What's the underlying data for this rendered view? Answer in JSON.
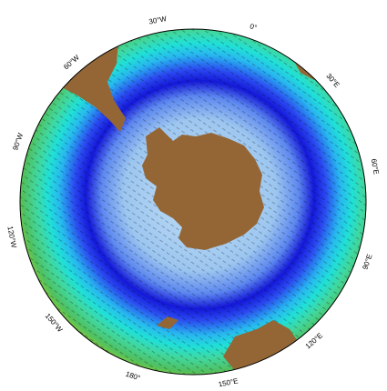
{
  "map": {
    "longitude_labels": [
      "30°W",
      "0°",
      "30°E",
      "60°E",
      "90°E",
      "120°E",
      "150°E",
      "180°",
      "150°W",
      "120°W",
      "90°W",
      "60°W"
    ]
  }
}
